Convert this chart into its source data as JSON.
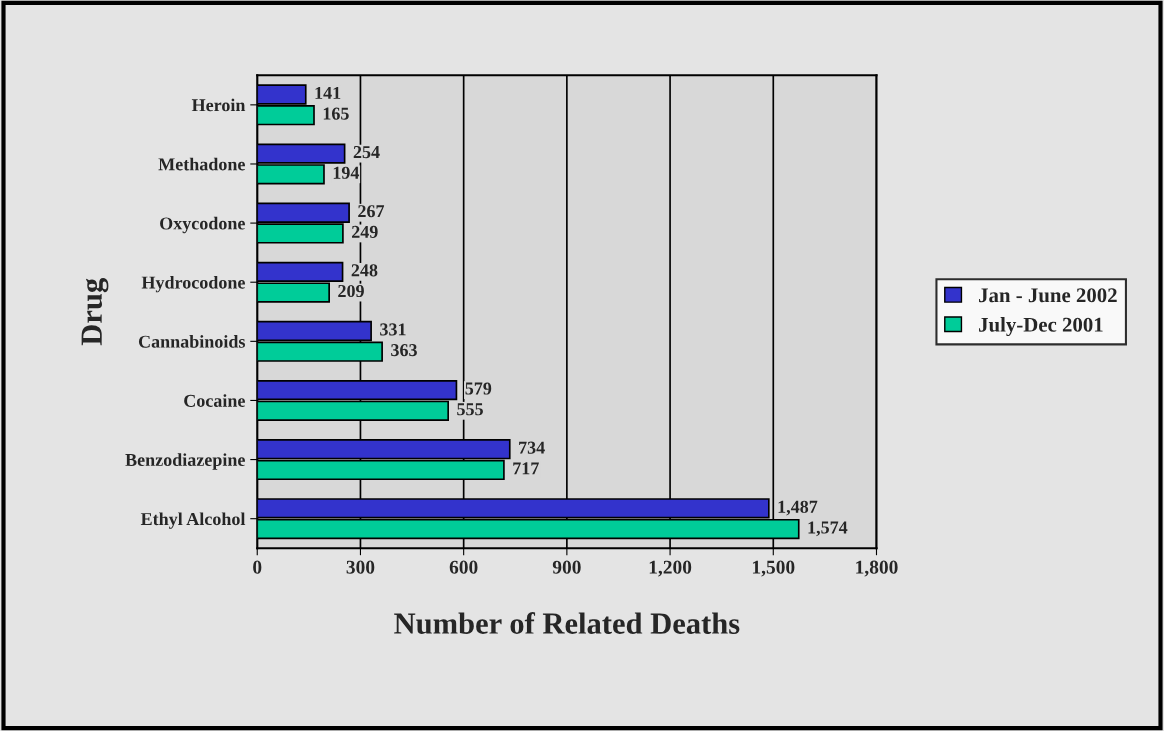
{
  "chart_data": {
    "type": "bar",
    "orientation": "horizontal",
    "xlabel": "Number of Related Deaths",
    "ylabel": "Drug",
    "categories": [
      "Heroin",
      "Methadone",
      "Oxycodone",
      "Hydrocodone",
      "Cannabinoids",
      "Cocaine",
      "Benzodiazepine",
      "Ethyl Alcohol"
    ],
    "series": [
      {
        "name": "Jan - June 2002",
        "color": "#3333cc",
        "values": [
          141,
          254,
          267,
          248,
          331,
          579,
          734,
          1487
        ],
        "value_labels": [
          "141",
          "254",
          "267",
          "248",
          "331",
          "579",
          "734",
          "1,487"
        ]
      },
      {
        "name": "July-Dec 2001",
        "color": "#00cc99",
        "values": [
          165,
          194,
          249,
          209,
          363,
          555,
          717,
          1574
        ],
        "value_labels": [
          "165",
          "194",
          "249",
          "209",
          "363",
          "555",
          "717",
          "1,574"
        ]
      }
    ],
    "xlim": [
      0,
      1800
    ],
    "xticks": [
      0,
      300,
      600,
      900,
      {
        "value": 1200,
        "label": "1,200"
      },
      {
        "value": 1500,
        "label": "1,500"
      },
      {
        "value": 1800,
        "label": "1,800"
      }
    ],
    "grid": "x",
    "legend": "right"
  }
}
